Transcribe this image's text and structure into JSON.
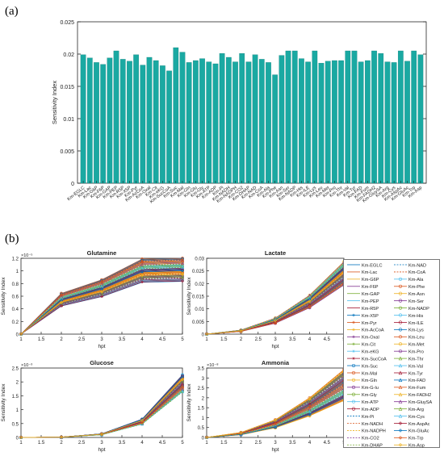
{
  "panel_a_label": "(a)",
  "panel_b_label": "(b)",
  "chart_data": [
    {
      "type": "bar",
      "ylabel": "Sensitivity Index",
      "ylim": [
        0,
        0.025
      ],
      "yticks": [
        "0",
        "0.005",
        "0.01",
        "0.015",
        "0.02",
        "0.025"
      ],
      "bar_color": "#1aa9a2",
      "categories": [
        "Km-EGLC",
        "Km-Lac",
        "Km-G6P",
        "Km-F6P",
        "Km-GAP",
        "Km-PEP",
        "Km-R5P",
        "Km-X5P",
        "Km-Pyr",
        "Km-AcCoA",
        "Km-Oxal",
        "Km-Cit",
        "Km-eKG",
        "Km-SucCoA",
        "Km-Suc",
        "Km-Mal",
        "Km-Gln",
        "Km-Glu",
        "Km-Gly",
        "Km-ATP",
        "Km-ADP",
        "Km-Pi",
        "Km-NADH",
        "Km-NADPH",
        "Km-CO2",
        "Km-DHAP",
        "Km-NAD",
        "Km-CoA",
        "Km-Ala",
        "Km-Phe",
        "Km-Asn",
        "Km-Ser",
        "Km-NADP",
        "Km-His",
        "Km-ILE",
        "Km-Lys",
        "Km-Leu",
        "Km-Met",
        "Km-Pro",
        "Km-Thr",
        "Km-Val",
        "Km-Tyr",
        "Km-FAD",
        "Km-Fum",
        "Km-FADH2",
        "Km-GluySA",
        "Km-Arg",
        "Km-Cys",
        "Km-AspAc",
        "Km-GluAc",
        "Km-Trp",
        "Km-Asp"
      ],
      "values": [
        0.0199,
        0.0194,
        0.0187,
        0.0184,
        0.0194,
        0.0205,
        0.0192,
        0.0189,
        0.0199,
        0.0183,
        0.0195,
        0.019,
        0.0182,
        0.0174,
        0.021,
        0.0203,
        0.0187,
        0.019,
        0.0193,
        0.0188,
        0.0185,
        0.0201,
        0.0195,
        0.0188,
        0.0201,
        0.0188,
        0.0199,
        0.0192,
        0.0187,
        0.0168,
        0.0198,
        0.0205,
        0.0205,
        0.0193,
        0.0188,
        0.0205,
        0.0186,
        0.0189,
        0.019,
        0.019,
        0.0205,
        0.0205,
        0.0188,
        0.019,
        0.0205,
        0.0201,
        0.0188,
        0.0187,
        0.0205,
        0.0189,
        0.0205,
        0.0199
      ]
    },
    {
      "type": "line",
      "title": "Glutamine",
      "xlabel": "hpt",
      "ylabel": "Sensitivity Index",
      "exponent": "×10⁻⁵",
      "x": [
        1,
        2,
        3,
        4,
        5
      ],
      "xticks": [
        "1",
        "1.5",
        "2",
        "2.5",
        "3",
        "3.5",
        "4",
        "4.5",
        "5"
      ],
      "yticks": [
        "0",
        "0.2",
        "0.4",
        "0.6",
        "0.8",
        "1",
        "1.2"
      ],
      "ylim": [
        0,
        1.2
      ],
      "typical": [
        0,
        0.57,
        0.76,
        1.05,
        1.07
      ]
    },
    {
      "type": "line",
      "title": "Lactate",
      "xlabel": "hpt",
      "ylabel": "Sensitivity Index",
      "x": [
        1,
        2,
        3,
        4,
        5
      ],
      "xticks": [
        "1",
        "1.5",
        "2",
        "2.5",
        "3",
        "3.5",
        "4",
        "4.5",
        "5"
      ],
      "yticks": [
        "0",
        "0.005",
        "0.01",
        "0.015",
        "0.02",
        "0.025",
        "0.03"
      ],
      "ylim": [
        0,
        0.03
      ],
      "typical": [
        0,
        0.0015,
        0.006,
        0.0145,
        0.027
      ]
    },
    {
      "type": "line",
      "title": "Glucose",
      "xlabel": "hpt",
      "ylabel": "Sensitivity Index",
      "exponent": "×10⁻³",
      "x": [
        1,
        2,
        3,
        4,
        5
      ],
      "xticks": [
        "1",
        "1.5",
        "2",
        "2.5",
        "3",
        "3.5",
        "4",
        "4.5",
        "5"
      ],
      "yticks": [
        "0",
        "0.5",
        "1",
        "1.5",
        "2",
        "2.5"
      ],
      "ylim": [
        0,
        2.5
      ],
      "typical": [
        0,
        0.01,
        0.12,
        0.6,
        2.05
      ]
    },
    {
      "type": "line",
      "title": "Ammonia",
      "xlabel": "hpt",
      "ylabel": "Sensitivity Index",
      "exponent": "×10⁻⁸",
      "x": [
        1,
        2,
        3,
        4,
        5
      ],
      "xticks": [
        "1",
        "1.5",
        "2",
        "2.5",
        "3",
        "3.5",
        "4",
        "4.5",
        "5"
      ],
      "yticks": [
        "0",
        "0.5",
        "1",
        "1.5",
        "2",
        "2.5",
        "3",
        "3.5"
      ],
      "ylim": [
        0,
        3.5
      ],
      "typical": [
        0,
        0.22,
        0.78,
        1.75,
        3.0
      ]
    }
  ],
  "legend": [
    {
      "label": "Km-EGLC",
      "color": "#0072bd",
      "marker": "none",
      "dash": false
    },
    {
      "label": "Km-NAD",
      "color": "#0072bd",
      "marker": "none",
      "dash": true
    },
    {
      "label": "Km-Lac",
      "color": "#d95319",
      "marker": "none",
      "dash": false
    },
    {
      "label": "Km-CoA",
      "color": "#d95319",
      "marker": "none",
      "dash": true
    },
    {
      "label": "Km-G6P",
      "color": "#edb120",
      "marker": "none",
      "dash": false
    },
    {
      "label": "Km-Ala",
      "color": "#4dbeee",
      "marker": "circle",
      "dash": false
    },
    {
      "label": "Km-F6P",
      "color": "#7e2f8e",
      "marker": "none",
      "dash": false
    },
    {
      "label": "Km-Phe",
      "color": "#d95319",
      "marker": "circle",
      "dash": false
    },
    {
      "label": "Km-GAP",
      "color": "#77ac30",
      "marker": "none",
      "dash": false
    },
    {
      "label": "Km-Asn",
      "color": "#edb120",
      "marker": "circle",
      "dash": false
    },
    {
      "label": "Km-PEP",
      "color": "#4dbeee",
      "marker": "none",
      "dash": false
    },
    {
      "label": "Km-Ser",
      "color": "#7e2f8e",
      "marker": "circle",
      "dash": false
    },
    {
      "label": "Km-R5P",
      "color": "#a2142f",
      "marker": "none",
      "dash": false
    },
    {
      "label": "Km-NADP",
      "color": "#77ac30",
      "marker": "circle",
      "dash": false
    },
    {
      "label": "Km-X5P",
      "color": "#0072bd",
      "marker": "star",
      "dash": false
    },
    {
      "label": "Km-His",
      "color": "#4dbeee",
      "marker": "circle",
      "dash": false
    },
    {
      "label": "Km-Pyr",
      "color": "#d95319",
      "marker": "star",
      "dash": false
    },
    {
      "label": "Km-ILE",
      "color": "#a2142f",
      "marker": "circle",
      "dash": false
    },
    {
      "label": "Km-AcCoA",
      "color": "#edb120",
      "marker": "star",
      "dash": false
    },
    {
      "label": "Km-Lys",
      "color": "#0072bd",
      "marker": "circle",
      "dash": false
    },
    {
      "label": "Km-Oxal",
      "color": "#7e2f8e",
      "marker": "star",
      "dash": false
    },
    {
      "label": "Km-Leu",
      "color": "#d95319",
      "marker": "circle",
      "dash": false
    },
    {
      "label": "Km-Cit",
      "color": "#77ac30",
      "marker": "star",
      "dash": false
    },
    {
      "label": "Km-Met",
      "color": "#edb120",
      "marker": "circle",
      "dash": false
    },
    {
      "label": "Km-eKG",
      "color": "#4dbeee",
      "marker": "star",
      "dash": false
    },
    {
      "label": "Km-Pro",
      "color": "#7e2f8e",
      "marker": "circle",
      "dash": false
    },
    {
      "label": "Km-SucCoA",
      "color": "#a2142f",
      "marker": "star",
      "dash": false
    },
    {
      "label": "Km-Thr",
      "color": "#77ac30",
      "marker": "triangle",
      "dash": false
    },
    {
      "label": "Km-Suc",
      "color": "#0072bd",
      "marker": "circle",
      "dash": false
    },
    {
      "label": "Km-Val",
      "color": "#4dbeee",
      "marker": "triangle",
      "dash": false
    },
    {
      "label": "Km-Mal",
      "color": "#d95319",
      "marker": "circle",
      "dash": false
    },
    {
      "label": "Km-Tyr",
      "color": "#a2142f",
      "marker": "triangle",
      "dash": false
    },
    {
      "label": "Km-Gln",
      "color": "#edb120",
      "marker": "circle",
      "dash": false
    },
    {
      "label": "Km-FAD",
      "color": "#0072bd",
      "marker": "triangle",
      "dash": false
    },
    {
      "label": "Km-G-lu",
      "color": "#7e2f8e",
      "marker": "circle",
      "dash": false
    },
    {
      "label": "Km-Fum",
      "color": "#d95319",
      "marker": "triangle",
      "dash": false
    },
    {
      "label": "Km-Gly",
      "color": "#77ac30",
      "marker": "circle",
      "dash": false
    },
    {
      "label": "Km-FADH2",
      "color": "#edb120",
      "marker": "triangle",
      "dash": false
    },
    {
      "label": "Km-ATP",
      "color": "#4dbeee",
      "marker": "circle",
      "dash": false
    },
    {
      "label": "Km-GluySA",
      "color": "#7e2f8e",
      "marker": "triangle",
      "dash": false
    },
    {
      "label": "Km-ADP",
      "color": "#a2142f",
      "marker": "circle",
      "dash": false
    },
    {
      "label": "Km-Arg",
      "color": "#77ac30",
      "marker": "triangle",
      "dash": false
    },
    {
      "label": "Km-Pi",
      "color": "#0072bd",
      "marker": "none",
      "dash": true
    },
    {
      "label": "Km-Cys",
      "color": "#4dbeee",
      "marker": "triangle",
      "dash": false
    },
    {
      "label": "Km-NADH",
      "color": "#d95319",
      "marker": "none",
      "dash": true
    },
    {
      "label": "Km-AspAc",
      "color": "#a2142f",
      "marker": "diamond",
      "dash": false
    },
    {
      "label": "Km-NADPH",
      "color": "#edb120",
      "marker": "none",
      "dash": true
    },
    {
      "label": "Km-GluAc",
      "color": "#0072bd",
      "marker": "diamond",
      "dash": false
    },
    {
      "label": "Km-CO2",
      "color": "#7e2f8e",
      "marker": "none",
      "dash": true
    },
    {
      "label": "Km-Trp",
      "color": "#d95319",
      "marker": "diamond",
      "dash": false
    },
    {
      "label": "Km-DHAP",
      "color": "#77ac30",
      "marker": "none",
      "dash": true
    },
    {
      "label": "Km-Asp",
      "color": "#edb120",
      "marker": "diamond",
      "dash": false
    }
  ]
}
